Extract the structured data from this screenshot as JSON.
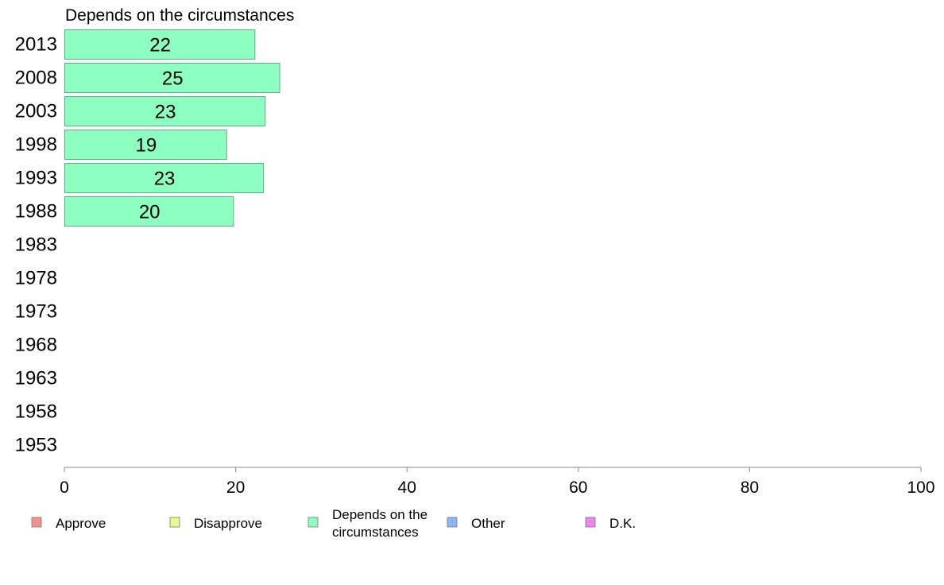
{
  "chart_data": {
    "type": "bar",
    "orientation": "horizontal",
    "title": "Depends on the circumstances",
    "categories": [
      "2013",
      "2008",
      "2003",
      "1998",
      "1993",
      "1988",
      "1983",
      "1978",
      "1973",
      "1968",
      "1963",
      "1958",
      "1953"
    ],
    "series": [
      {
        "name": "Depends on the circumstances",
        "color": "#8dffc0",
        "values": [
          22.2,
          25.1,
          23.4,
          18.9,
          23.2,
          19.7,
          null,
          null,
          null,
          null,
          null,
          null,
          null
        ],
        "labels": [
          "22",
          "25",
          "23",
          "19",
          "23",
          "20",
          "",
          "",
          "",
          "",
          "",
          "",
          ""
        ]
      }
    ],
    "xlim": [
      0,
      100
    ],
    "xticks": [
      "0",
      "20",
      "40",
      "60",
      "80",
      "100"
    ],
    "grid": false,
    "legend": {
      "position": "bottom",
      "items": [
        {
          "label_lines": [
            "Approve"
          ],
          "color": "#f6908a"
        },
        {
          "label_lines": [
            "Disapprove"
          ],
          "color": "#e6fb8a"
        },
        {
          "label_lines": [
            "Depends on the",
            "circumstances"
          ],
          "color": "#8dffc0"
        },
        {
          "label_lines": [
            "Other"
          ],
          "color": "#8ab8f6"
        },
        {
          "label_lines": [
            "D.K."
          ],
          "color": "#ee86f2"
        }
      ]
    }
  }
}
